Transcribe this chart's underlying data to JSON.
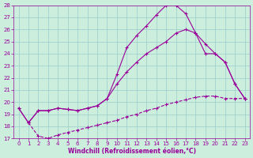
{
  "xlabel": "Windchill (Refroidissement éolien,°C)",
  "bg_color": "#cceedd",
  "grid_color": "#99cccc",
  "line_color": "#990099",
  "xlim": [
    -0.5,
    23.5
  ],
  "ylim": [
    17,
    28
  ],
  "xticks": [
    0,
    1,
    2,
    3,
    4,
    5,
    6,
    7,
    8,
    9,
    10,
    11,
    12,
    13,
    14,
    15,
    16,
    17,
    18,
    19,
    20,
    21,
    22,
    23
  ],
  "yticks": [
    17,
    18,
    19,
    20,
    21,
    22,
    23,
    24,
    25,
    26,
    27,
    28
  ],
  "curve1_x": [
    0,
    1,
    2,
    3,
    4,
    5,
    6,
    7,
    8,
    9,
    10,
    11,
    12,
    13,
    14,
    15,
    16,
    17,
    18,
    19,
    20,
    21,
    22,
    23
  ],
  "curve1_y": [
    19.5,
    18.3,
    19.3,
    19.3,
    19.5,
    19.4,
    19.3,
    19.5,
    19.7,
    20.3,
    22.3,
    24.5,
    25.5,
    26.3,
    27.2,
    28.0,
    28.0,
    27.3,
    25.7,
    24.8,
    24.0,
    23.3,
    21.5,
    20.3
  ],
  "curve2_x": [
    0,
    1,
    2,
    3,
    4,
    5,
    6,
    7,
    8,
    9,
    10,
    11,
    12,
    13,
    14,
    15,
    16,
    17,
    18,
    19,
    20,
    21,
    22,
    23
  ],
  "curve2_y": [
    19.5,
    18.3,
    19.3,
    19.3,
    19.5,
    19.4,
    19.3,
    19.5,
    19.7,
    20.3,
    21.5,
    22.5,
    23.3,
    24.0,
    24.5,
    25.0,
    25.7,
    26.0,
    25.7,
    24.0,
    24.0,
    23.3,
    21.5,
    20.3
  ],
  "curve3_x": [
    1,
    2,
    3,
    4,
    5,
    6,
    7,
    8,
    9,
    10,
    11,
    12,
    13,
    14,
    15,
    16,
    17,
    18,
    19,
    20,
    21,
    22,
    23
  ],
  "curve3_y": [
    18.3,
    17.2,
    17.0,
    17.3,
    17.5,
    17.7,
    17.9,
    18.1,
    18.3,
    18.5,
    18.8,
    19.0,
    19.3,
    19.5,
    19.8,
    20.0,
    20.2,
    20.4,
    20.5,
    20.5,
    20.3,
    20.3,
    20.3
  ]
}
